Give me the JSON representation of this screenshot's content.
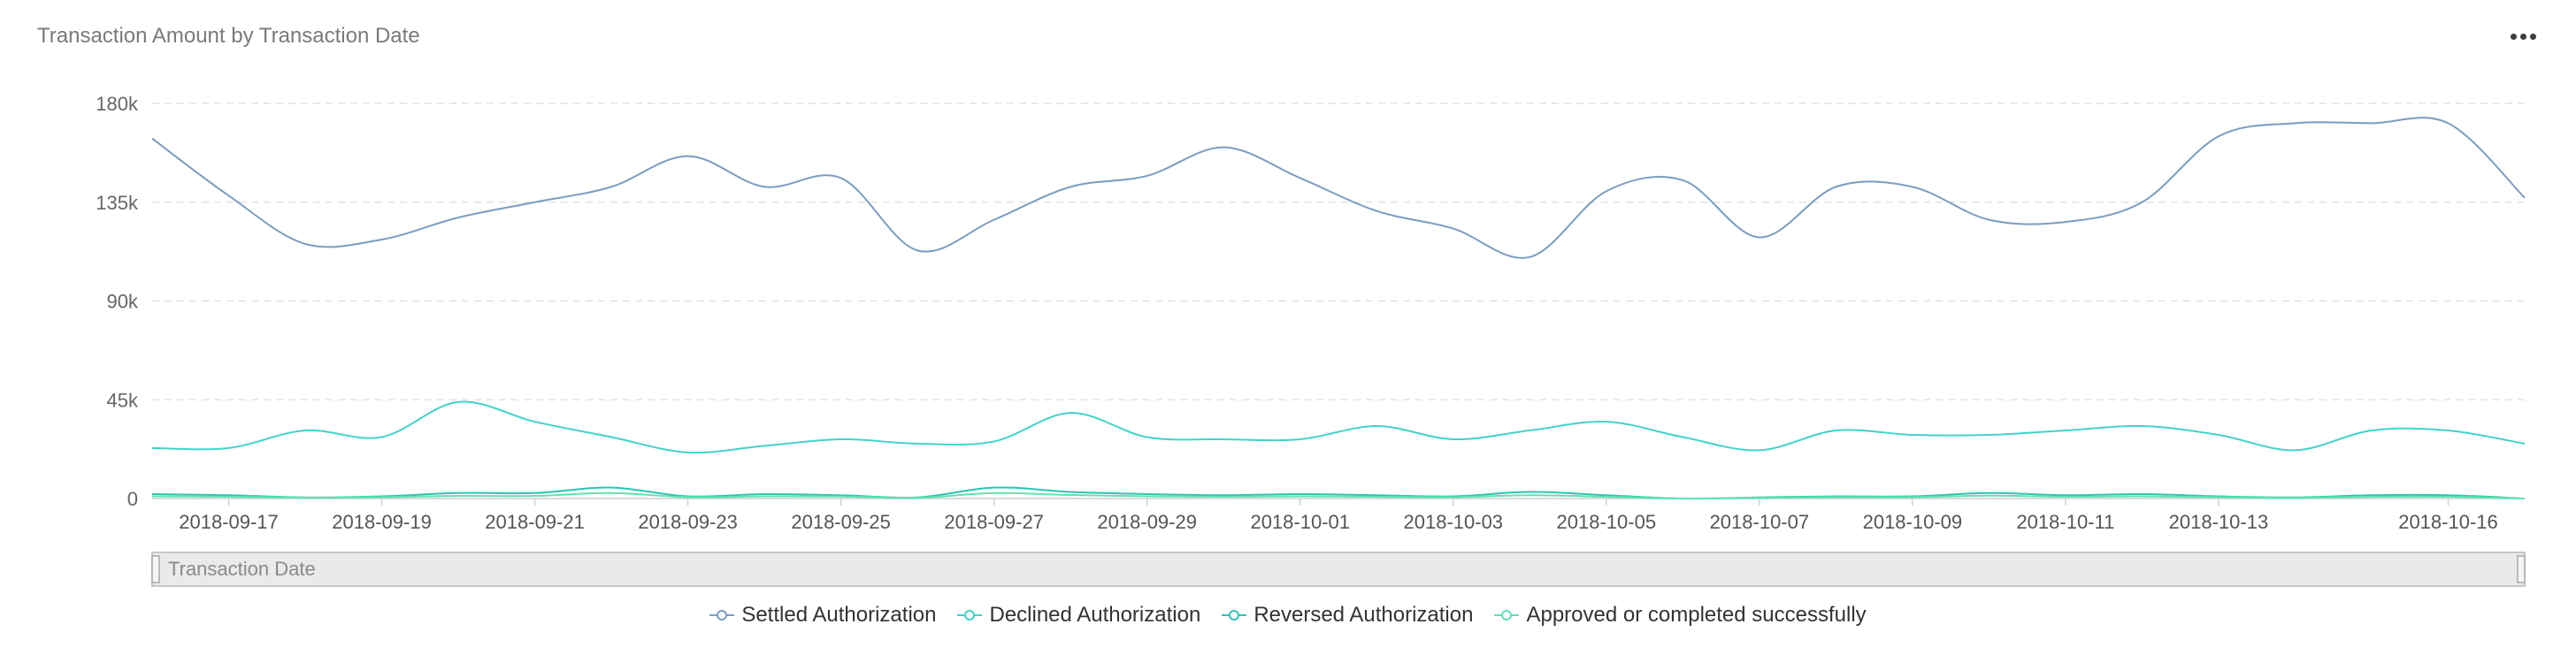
{
  "header": {
    "title": "Transaction Amount by Transaction Date",
    "menu_icon": "more-dots-icon"
  },
  "navigator": {
    "label": "Transaction Date"
  },
  "colors": {
    "settled": "#7b9cc2",
    "declined": "#40d3c8",
    "reversed": "#2ec4b4",
    "approved": "#5fe3b0"
  },
  "chart_data": {
    "type": "line",
    "title": "Transaction Amount by Transaction Date",
    "xlabel": "Transaction Date",
    "ylabel": "",
    "ylim": [
      0,
      180000
    ],
    "y_ticks": [
      {
        "value": 0,
        "label": "0"
      },
      {
        "value": 45000,
        "label": "45k"
      },
      {
        "value": 90000,
        "label": "90k"
      },
      {
        "value": 135000,
        "label": "135k"
      },
      {
        "value": 180000,
        "label": "180k"
      }
    ],
    "grid": true,
    "legend_position": "bottom",
    "x": [
      "2018-09-16",
      "2018-09-17",
      "2018-09-18",
      "2018-09-19",
      "2018-09-20",
      "2018-09-21",
      "2018-09-22",
      "2018-09-23",
      "2018-09-24",
      "2018-09-25",
      "2018-09-26",
      "2018-09-27",
      "2018-09-28",
      "2018-09-29",
      "2018-09-30",
      "2018-10-01",
      "2018-10-02",
      "2018-10-03",
      "2018-10-04",
      "2018-10-05",
      "2018-10-06",
      "2018-10-07",
      "2018-10-08",
      "2018-10-09",
      "2018-10-10",
      "2018-10-11",
      "2018-10-12",
      "2018-10-13",
      "2018-10-14",
      "2018-10-15",
      "2018-10-16",
      "2018-10-17"
    ],
    "x_tick_labels": [
      "2018-09-17",
      "2018-09-19",
      "2018-09-21",
      "2018-09-23",
      "2018-09-25",
      "2018-09-27",
      "2018-09-29",
      "2018-10-01",
      "2018-10-03",
      "2018-10-05",
      "2018-10-07",
      "2018-10-09",
      "2018-10-11",
      "2018-10-13",
      "2018-10-16"
    ],
    "series": [
      {
        "name": "Settled Authorization",
        "color": "#7b9cc2",
        "values": [
          164000,
          138000,
          116000,
          118000,
          128000,
          135000,
          142000,
          156000,
          142000,
          146000,
          113000,
          127000,
          142000,
          147000,
          160000,
          146000,
          131000,
          123000,
          110000,
          140000,
          145000,
          119000,
          142000,
          142000,
          127000,
          126000,
          135000,
          165000,
          171000,
          171000,
          171000,
          137000
        ]
      },
      {
        "name": "Declined Authorization",
        "color": "#40d3c8",
        "values": [
          23000,
          23000,
          31000,
          28000,
          44000,
          35000,
          28000,
          21000,
          24000,
          27000,
          25000,
          26000,
          39000,
          28000,
          27000,
          27000,
          33000,
          27000,
          31000,
          35000,
          28000,
          22000,
          31000,
          29000,
          29000,
          31000,
          33000,
          29000,
          22000,
          31000,
          31000,
          25000
        ]
      },
      {
        "name": "Reversed Authorization",
        "color": "#2ec4b4",
        "values": [
          2000,
          1500,
          500,
          1000,
          2500,
          2500,
          5000,
          1000,
          2000,
          1500,
          500,
          5000,
          3000,
          2000,
          1500,
          2000,
          1500,
          1000,
          3000,
          1500,
          0,
          500,
          1000,
          1000,
          2500,
          1500,
          2000,
          1000,
          500,
          1500,
          1500,
          0
        ]
      },
      {
        "name": "Approved or completed successfully",
        "color": "#5fe3b0",
        "values": [
          1000,
          800,
          400,
          600,
          1200,
          1200,
          2500,
          600,
          1000,
          900,
          300,
          2500,
          1600,
          1000,
          800,
          1000,
          800,
          600,
          1500,
          800,
          0,
          300,
          600,
          600,
          1300,
          800,
          1000,
          600,
          300,
          800,
          800,
          0
        ]
      }
    ]
  }
}
